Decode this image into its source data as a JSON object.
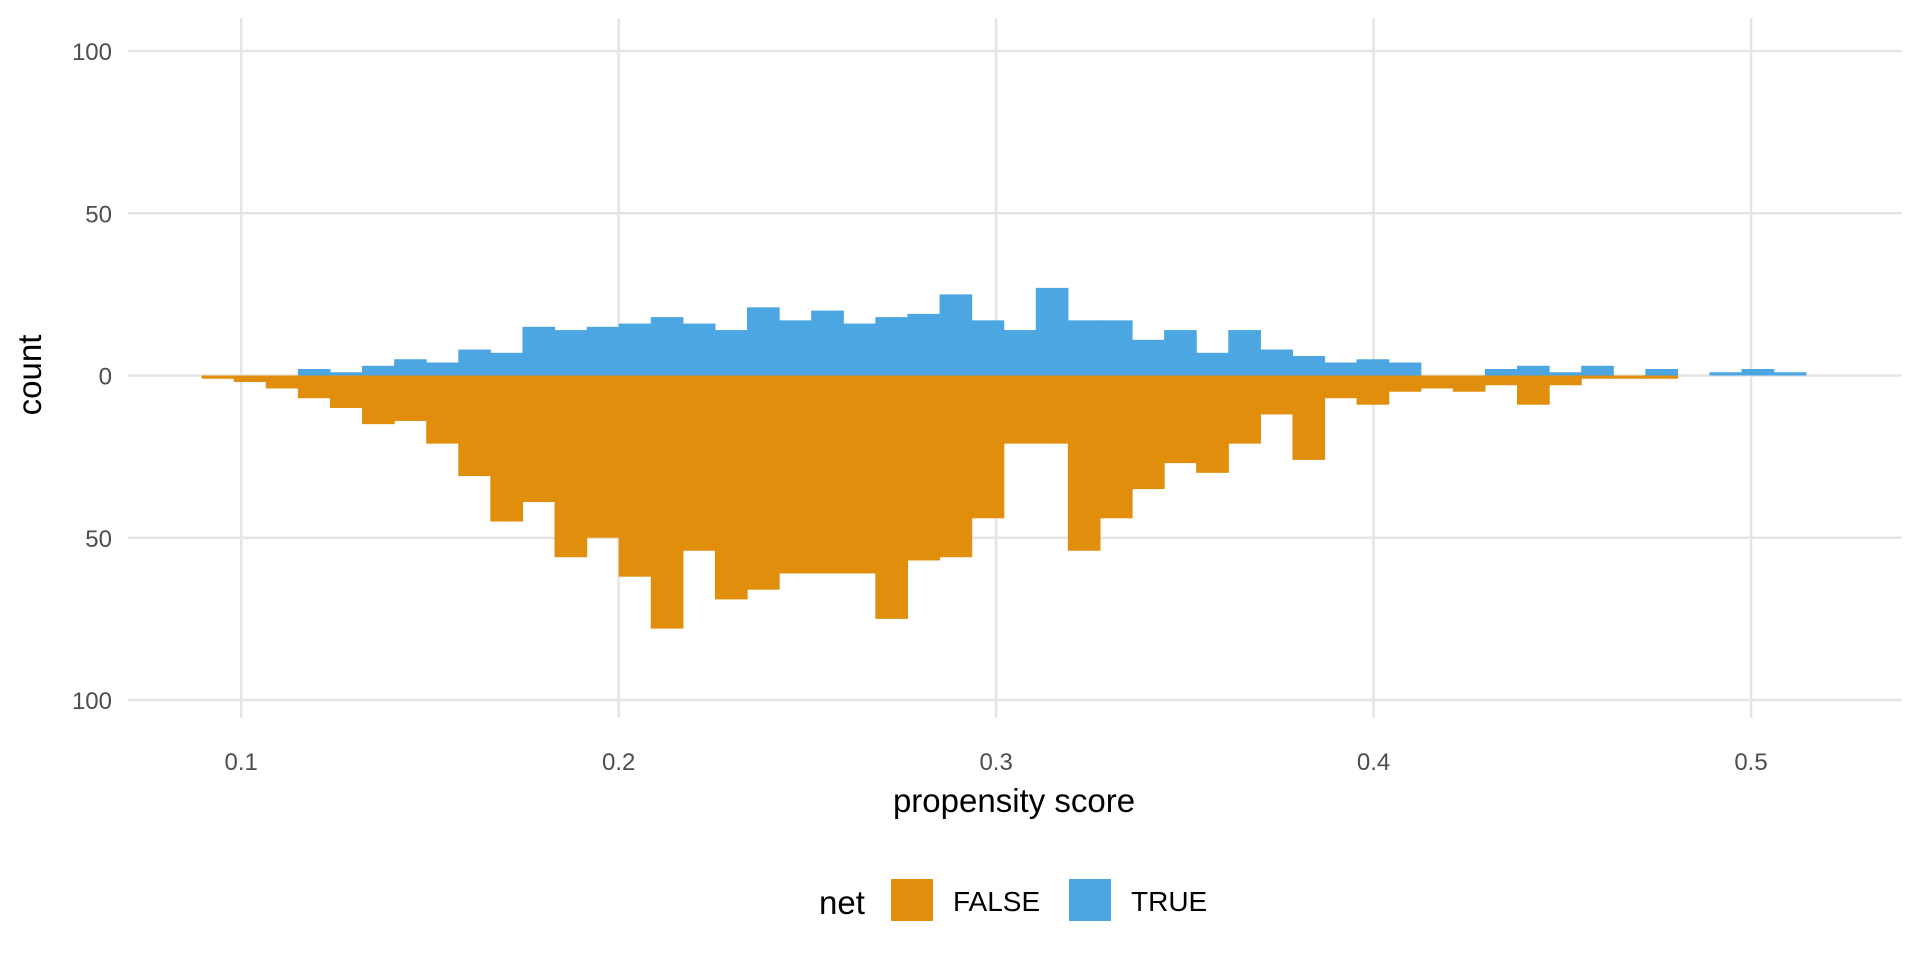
{
  "chart_data": {
    "type": "bar",
    "subtype": "mirrored-histogram",
    "xlabel": "propensity score",
    "ylabel": "count",
    "xlim": [
      0.07,
      0.54
    ],
    "ylim": [
      -100,
      100
    ],
    "x_ticks": [
      0.1,
      0.2,
      0.3,
      0.4,
      0.5
    ],
    "x_tick_labels": [
      "0.1",
      "0.2",
      "0.3",
      "0.4",
      "0.5"
    ],
    "y_ticks": [
      100,
      50,
      0,
      -50,
      -100
    ],
    "y_tick_labels": [
      "100",
      "50",
      "0",
      "50",
      "100"
    ],
    "grid": true,
    "legend": {
      "title": "net",
      "position": "bottom"
    },
    "bin_width": 0.0085,
    "series": [
      {
        "name": "FALSE",
        "color": "#E08E0B",
        "direction": "down",
        "bin_starts": [
          0.0895,
          0.098,
          0.1065,
          0.115,
          0.1235,
          0.132,
          0.1405,
          0.149,
          0.1575,
          0.166,
          0.1745,
          0.183,
          0.1915,
          0.2,
          0.2085,
          0.217,
          0.2255,
          0.234,
          0.2425,
          0.251,
          0.2595,
          0.268,
          0.2765,
          0.285,
          0.2935,
          0.302,
          0.3105,
          0.319,
          0.3275,
          0.336,
          0.3445,
          0.353,
          0.3615,
          0.37,
          0.3785,
          0.387,
          0.3955,
          0.404,
          0.4125,
          0.421,
          0.4295,
          0.438,
          0.4465,
          0.455,
          0.4635,
          0.472
        ],
        "values": [
          1,
          2,
          4,
          7,
          10,
          15,
          14,
          21,
          31,
          45,
          39,
          56,
          50,
          62,
          78,
          54,
          69,
          66,
          61,
          61,
          61,
          75,
          57,
          56,
          44,
          21,
          21,
          54,
          44,
          35,
          27,
          30,
          21,
          12,
          26,
          7,
          9,
          5,
          4,
          5,
          3,
          9,
          3,
          1,
          1,
          1
        ]
      },
      {
        "name": "TRUE",
        "color": "#4CA6E2",
        "direction": "up",
        "bin_starts": [
          0.115,
          0.1235,
          0.132,
          0.1405,
          0.149,
          0.1575,
          0.166,
          0.1745,
          0.183,
          0.1915,
          0.2,
          0.2085,
          0.217,
          0.2255,
          0.234,
          0.2425,
          0.251,
          0.2595,
          0.268,
          0.2765,
          0.285,
          0.2935,
          0.302,
          0.3105,
          0.319,
          0.3275,
          0.336,
          0.3445,
          0.353,
          0.3615,
          0.37,
          0.3785,
          0.387,
          0.3955,
          0.404,
          0.4125,
          0.421,
          0.4295,
          0.438,
          0.4465,
          0.455,
          0.4635,
          0.472,
          0.4805,
          0.489,
          0.4975,
          0.506
        ],
        "values": [
          2,
          1,
          3,
          5,
          4,
          8,
          7,
          15,
          14,
          15,
          16,
          18,
          16,
          14,
          21,
          17,
          20,
          16,
          18,
          19,
          25,
          17,
          14,
          27,
          17,
          17,
          11,
          14,
          7,
          14,
          8,
          6,
          4,
          5,
          4,
          0,
          0,
          2,
          3,
          1,
          3,
          0,
          2,
          0,
          1,
          2,
          1
        ]
      }
    ]
  }
}
